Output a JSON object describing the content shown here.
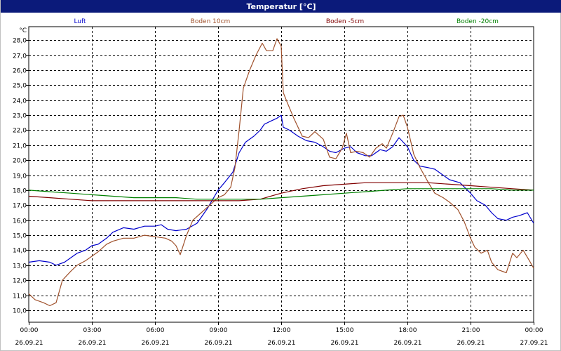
{
  "window": {
    "title": "Temperatur [°C]"
  },
  "chart_data": {
    "type": "line",
    "title": "Temperatur [°C]",
    "ylabel": "°C",
    "xlabel": "",
    "ylim": [
      9.2,
      28.9
    ],
    "yticks": [
      "10,0",
      "11,0",
      "12,0",
      "13,0",
      "14,0",
      "15,0",
      "16,0",
      "17,0",
      "18,0",
      "19,0",
      "20,0",
      "21,0",
      "22,0",
      "23,0",
      "24,0",
      "25,0",
      "26,0",
      "27,0",
      "28,0"
    ],
    "xticks": [
      {
        "time": "00:00",
        "date": "26.09.21"
      },
      {
        "time": "03:00",
        "date": "26.09.21"
      },
      {
        "time": "06:00",
        "date": "26.09.21"
      },
      {
        "time": "09:00",
        "date": "26.09.21"
      },
      {
        "time": "12:00",
        "date": "26.09.21"
      },
      {
        "time": "15:00",
        "date": "26.09.21"
      },
      {
        "time": "18:00",
        "date": "26.09.21"
      },
      {
        "time": "21:00",
        "date": "26.09.21"
      },
      {
        "time": "00:00",
        "date": "27.09.21"
      }
    ],
    "x_unit": "hours",
    "grid": true,
    "legend_placement": "top",
    "series": [
      {
        "name": "Luft",
        "color": "#0000cc",
        "points": [
          [
            0,
            13.2
          ],
          [
            0.5,
            13.3
          ],
          [
            1,
            13.2
          ],
          [
            1.3,
            13.0
          ],
          [
            1.7,
            13.2
          ],
          [
            2,
            13.5
          ],
          [
            2.3,
            13.8
          ],
          [
            2.7,
            14.0
          ],
          [
            3,
            14.3
          ],
          [
            3.3,
            14.4
          ],
          [
            3.7,
            14.8
          ],
          [
            4,
            15.2
          ],
          [
            4.5,
            15.5
          ],
          [
            5,
            15.4
          ],
          [
            5.5,
            15.6
          ],
          [
            6,
            15.6
          ],
          [
            6.3,
            15.7
          ],
          [
            6.6,
            15.4
          ],
          [
            7,
            15.3
          ],
          [
            7.5,
            15.4
          ],
          [
            8,
            15.8
          ],
          [
            8.5,
            16.8
          ],
          [
            9,
            18.0
          ],
          [
            9.3,
            18.5
          ],
          [
            9.7,
            19.2
          ],
          [
            10,
            20.5
          ],
          [
            10.3,
            21.2
          ],
          [
            10.7,
            21.6
          ],
          [
            11,
            22.0
          ],
          [
            11.2,
            22.4
          ],
          [
            11.5,
            22.6
          ],
          [
            11.8,
            22.8
          ],
          [
            12,
            23.0
          ],
          [
            12.1,
            22.2
          ],
          [
            12.4,
            22.0
          ],
          [
            12.8,
            21.6
          ],
          [
            13.2,
            21.3
          ],
          [
            13.6,
            21.2
          ],
          [
            14,
            20.9
          ],
          [
            14.3,
            20.6
          ],
          [
            14.6,
            20.5
          ],
          [
            15,
            20.8
          ],
          [
            15.3,
            20.9
          ],
          [
            15.6,
            20.5
          ],
          [
            16,
            20.3
          ],
          [
            16.3,
            20.3
          ],
          [
            16.7,
            20.7
          ],
          [
            17,
            20.6
          ],
          [
            17.3,
            20.9
          ],
          [
            17.6,
            21.5
          ],
          [
            18,
            20.9
          ],
          [
            18.3,
            20.0
          ],
          [
            18.6,
            19.6
          ],
          [
            19,
            19.5
          ],
          [
            19.3,
            19.4
          ],
          [
            19.7,
            19.0
          ],
          [
            20,
            18.7
          ],
          [
            20.5,
            18.5
          ],
          [
            21,
            17.8
          ],
          [
            21.3,
            17.3
          ],
          [
            21.7,
            17.0
          ],
          [
            22,
            16.5
          ],
          [
            22.3,
            16.1
          ],
          [
            22.7,
            16.0
          ],
          [
            23,
            16.2
          ],
          [
            23.3,
            16.3
          ],
          [
            23.7,
            16.5
          ],
          [
            24,
            15.8
          ]
        ]
      },
      {
        "name": "Boden 10cm",
        "color": "#a0522d",
        "points": [
          [
            0,
            11.1
          ],
          [
            0.3,
            10.7
          ],
          [
            0.7,
            10.5
          ],
          [
            1,
            10.3
          ],
          [
            1.3,
            10.5
          ],
          [
            1.6,
            12.0
          ],
          [
            2,
            12.6
          ],
          [
            2.3,
            13.0
          ],
          [
            2.7,
            13.3
          ],
          [
            3,
            13.6
          ],
          [
            3.3,
            13.9
          ],
          [
            3.7,
            14.4
          ],
          [
            4,
            14.6
          ],
          [
            4.5,
            14.8
          ],
          [
            5,
            14.8
          ],
          [
            5.5,
            15.0
          ],
          [
            6,
            14.9
          ],
          [
            6.5,
            14.8
          ],
          [
            6.8,
            14.6
          ],
          [
            7,
            14.3
          ],
          [
            7.2,
            13.7
          ],
          [
            7.5,
            15.0
          ],
          [
            7.8,
            16.0
          ],
          [
            8.2,
            16.5
          ],
          [
            8.6,
            17.0
          ],
          [
            9,
            17.5
          ],
          [
            9.3,
            17.7
          ],
          [
            9.6,
            18.2
          ],
          [
            9.8,
            19.5
          ],
          [
            10,
            22.0
          ],
          [
            10.2,
            24.8
          ],
          [
            10.5,
            26.0
          ],
          [
            10.8,
            27.0
          ],
          [
            11.1,
            27.8
          ],
          [
            11.3,
            27.3
          ],
          [
            11.6,
            27.3
          ],
          [
            11.8,
            28.1
          ],
          [
            12,
            27.6
          ],
          [
            12.1,
            24.5
          ],
          [
            12.3,
            23.8
          ],
          [
            12.6,
            22.8
          ],
          [
            13,
            21.6
          ],
          [
            13.3,
            21.5
          ],
          [
            13.6,
            21.9
          ],
          [
            14,
            21.4
          ],
          [
            14.3,
            20.2
          ],
          [
            14.6,
            20.1
          ],
          [
            14.9,
            20.8
          ],
          [
            15.1,
            21.8
          ],
          [
            15.3,
            20.5
          ],
          [
            15.6,
            20.6
          ],
          [
            15.9,
            20.5
          ],
          [
            16.2,
            20.2
          ],
          [
            16.5,
            20.8
          ],
          [
            16.8,
            21.1
          ],
          [
            17,
            20.8
          ],
          [
            17.3,
            21.8
          ],
          [
            17.6,
            22.9
          ],
          [
            17.8,
            23.0
          ],
          [
            18,
            22.2
          ],
          [
            18.3,
            20.4
          ],
          [
            18.6,
            19.5
          ],
          [
            19,
            18.5
          ],
          [
            19.3,
            17.8
          ],
          [
            19.7,
            17.5
          ],
          [
            20,
            17.2
          ],
          [
            20.4,
            16.7
          ],
          [
            20.7,
            15.9
          ],
          [
            21,
            14.8
          ],
          [
            21.2,
            14.2
          ],
          [
            21.5,
            13.8
          ],
          [
            21.8,
            14.0
          ],
          [
            22,
            13.2
          ],
          [
            22.3,
            12.7
          ],
          [
            22.7,
            12.5
          ],
          [
            23,
            13.8
          ],
          [
            23.2,
            13.5
          ],
          [
            23.5,
            14.0
          ],
          [
            23.8,
            13.3
          ],
          [
            24,
            12.8
          ]
        ]
      },
      {
        "name": "Boden -5cm",
        "color": "#800000",
        "points": [
          [
            0,
            17.6
          ],
          [
            1,
            17.5
          ],
          [
            2,
            17.4
          ],
          [
            3,
            17.3
          ],
          [
            4,
            17.3
          ],
          [
            5,
            17.3
          ],
          [
            6,
            17.3
          ],
          [
            7,
            17.3
          ],
          [
            8,
            17.3
          ],
          [
            9,
            17.3
          ],
          [
            10,
            17.3
          ],
          [
            11,
            17.4
          ],
          [
            12,
            17.8
          ],
          [
            13,
            18.1
          ],
          [
            14,
            18.3
          ],
          [
            15,
            18.4
          ],
          [
            16,
            18.5
          ],
          [
            17,
            18.5
          ],
          [
            18,
            18.5
          ],
          [
            19,
            18.5
          ],
          [
            20,
            18.4
          ],
          [
            21,
            18.3
          ],
          [
            22,
            18.2
          ],
          [
            23,
            18.1
          ],
          [
            24,
            18.0
          ]
        ]
      },
      {
        "name": "Boden -20cm",
        "color": "#008000",
        "points": [
          [
            0,
            18.0
          ],
          [
            1,
            17.9
          ],
          [
            2,
            17.8
          ],
          [
            3,
            17.7
          ],
          [
            4,
            17.6
          ],
          [
            5,
            17.5
          ],
          [
            6,
            17.5
          ],
          [
            7,
            17.5
          ],
          [
            8,
            17.4
          ],
          [
            9,
            17.4
          ],
          [
            10,
            17.4
          ],
          [
            11,
            17.4
          ],
          [
            12,
            17.5
          ],
          [
            13,
            17.6
          ],
          [
            14,
            17.7
          ],
          [
            15,
            17.8
          ],
          [
            16,
            17.9
          ],
          [
            17,
            18.0
          ],
          [
            18,
            18.1
          ],
          [
            19,
            18.1
          ],
          [
            20,
            18.1
          ],
          [
            21,
            18.1
          ],
          [
            22,
            18.1
          ],
          [
            23,
            18.0
          ],
          [
            24,
            18.0
          ]
        ]
      }
    ]
  }
}
